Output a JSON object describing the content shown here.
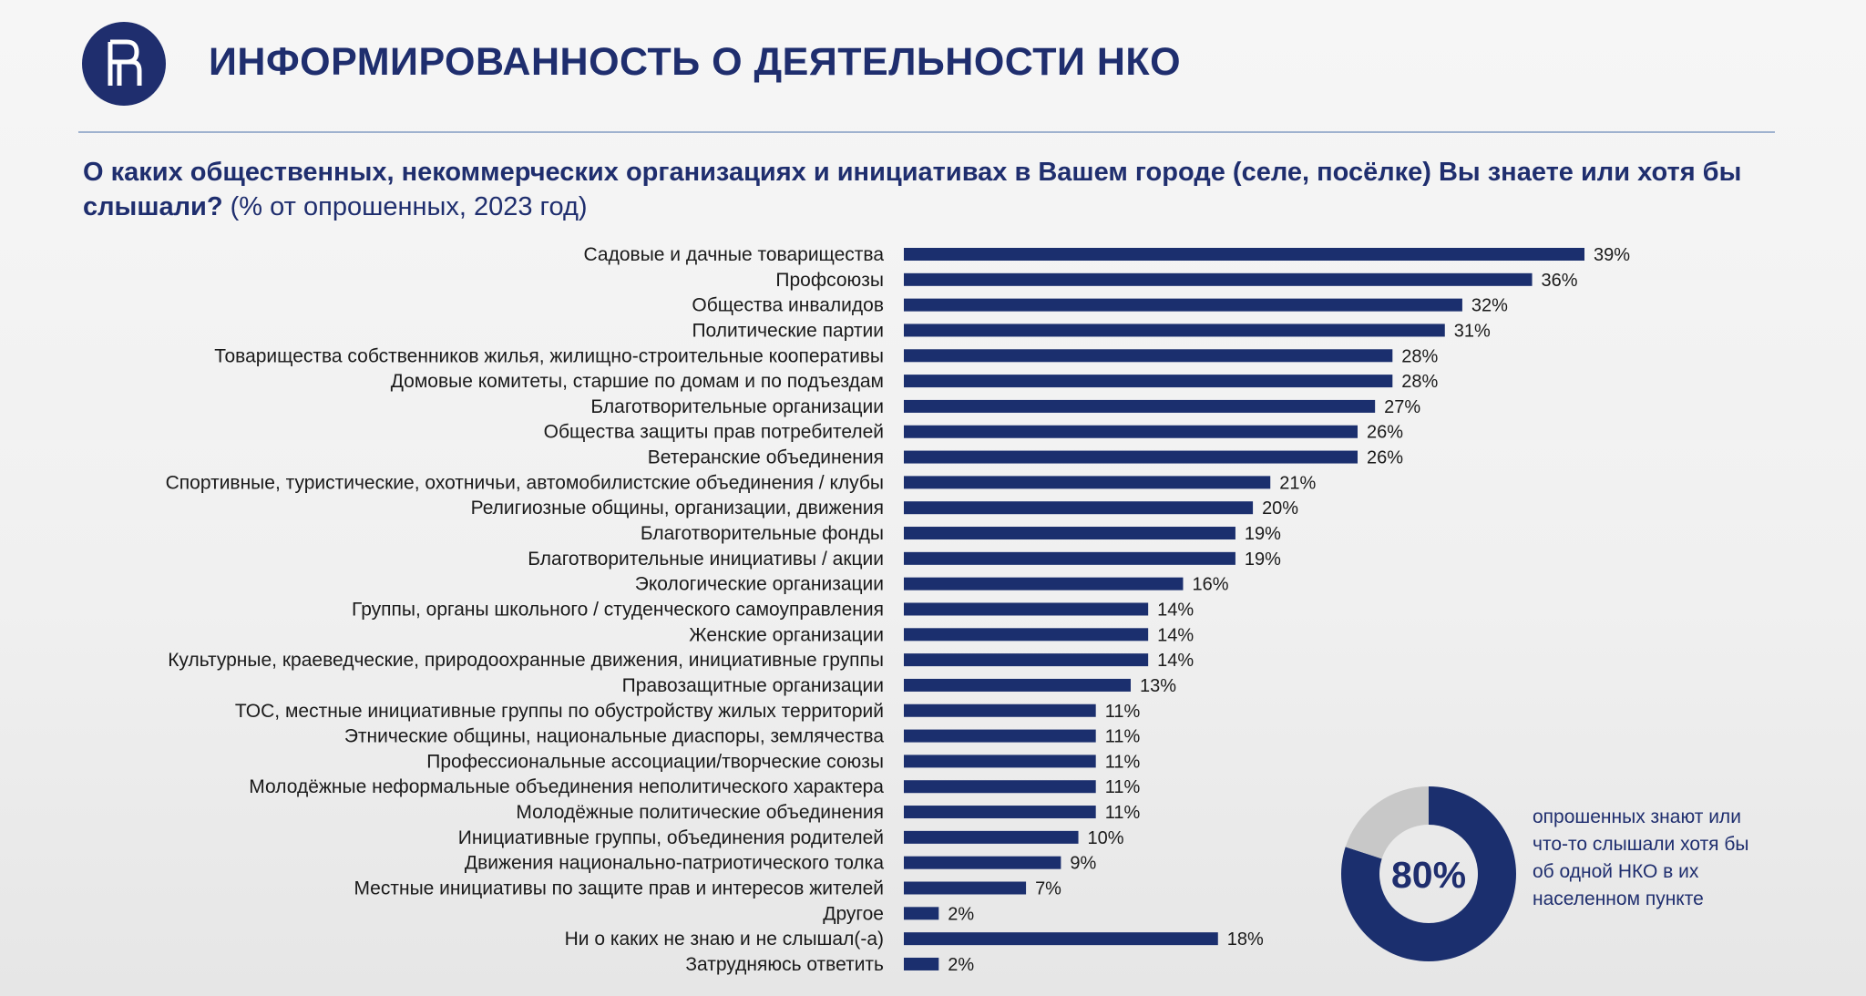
{
  "title": "ИНФОРМИРОВАННОСТЬ О ДЕЯТЕЛЬНОСТИ НКО",
  "question_main": "О каких общественных, некоммерческих организациях и инициативах в Вашем городе (селе, посёлке) Вы знаете или хотя бы слышали?",
  "question_sub": " (% от опрошенных, 2023 год)",
  "colors": {
    "bar": "#1b2f6e",
    "donut_main": "#1b2f6e",
    "donut_rest": "#c8c8c8",
    "title": "#1f2e6e"
  },
  "icons": {
    "logo": "hse-logo"
  },
  "chart_data": [
    {
      "type": "bar",
      "orientation": "horizontal",
      "value_suffix": "%",
      "xlim": [
        0,
        39
      ],
      "grid": false,
      "categories": [
        "Садовые и дачные товарищества",
        "Профсоюзы",
        "Общества инвалидов",
        "Политические партии",
        "Товарищества собственников жилья, жилищно-строительные кооперативы",
        "Домовые комитеты, старшие по домам и по подъездам",
        "Благотворительные организации",
        "Общества защиты прав потребителей",
        "Ветеранские объединения",
        "Спортивные, туристические, охотничьи, автомобилистские объединения / клубы",
        "Религиозные общины, организации, движения",
        "Благотворительные фонды",
        "Благотворительные инициативы / акции",
        "Экологические организации",
        "Группы, органы школьного / студенческого самоуправления",
        "Женские организации",
        "Культурные, краеведческие, природоохранные движения, инициативные группы",
        "Правозащитные организации",
        "ТОС, местные инициативные группы по обустройству жилых территорий",
        "Этнические общины, национальные диаспоры, землячества",
        "Профессиональные ассоциации/творческие союзы",
        "Молодёжные неформальные объединения неполитического характера",
        "Молодёжные политические объединения",
        "Инициативные группы, объединения родителей",
        "Движения национально-патриотического толка",
        "Местные инициативы по защите прав и интересов жителей",
        "Другое",
        "Ни о каких не знаю и не слышал(-а)",
        "Затрудняюсь ответить"
      ],
      "values": [
        39,
        36,
        32,
        31,
        28,
        28,
        27,
        26,
        26,
        21,
        20,
        19,
        19,
        16,
        14,
        14,
        14,
        13,
        11,
        11,
        11,
        11,
        11,
        10,
        9,
        7,
        2,
        18,
        2
      ]
    },
    {
      "type": "pie",
      "donut": true,
      "values": [
        80,
        20
      ],
      "center_label": "80%",
      "caption": "опрошенных знают или что-то слышали хотя бы об одной НКО в их населенном пункте"
    }
  ]
}
